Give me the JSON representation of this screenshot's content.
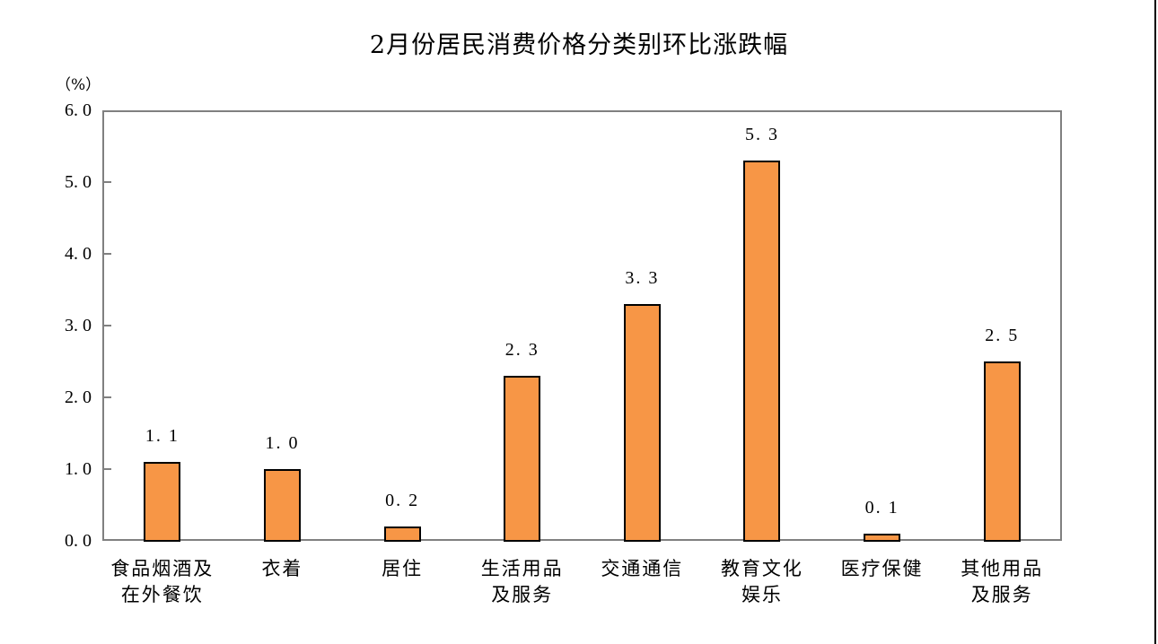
{
  "chart_data": {
    "type": "bar",
    "title": "2月份居民消费价格分类别环比涨跌幅",
    "ylabel": "（%）",
    "xlabel": "",
    "ylim": [
      0,
      6
    ],
    "yticks": [
      "0.0",
      "1.0",
      "2.0",
      "3.0",
      "4.0",
      "5.0",
      "6.0"
    ],
    "grid": false,
    "legend": null,
    "bar_color": "#F79646",
    "categories": [
      [
        "食品烟酒及",
        "在外餐饮"
      ],
      [
        "衣着"
      ],
      [
        "居住"
      ],
      [
        "生活用品",
        "及服务"
      ],
      [
        "交通通信"
      ],
      [
        "教育文化",
        "娱乐"
      ],
      [
        "医疗保健"
      ],
      [
        "其他用品",
        "及服务"
      ]
    ],
    "values": [
      1.1,
      1.0,
      0.2,
      2.3,
      3.3,
      5.3,
      0.1,
      2.5
    ],
    "value_labels": [
      "1.1",
      "1.0",
      "0.2",
      "2.3",
      "3.3",
      "5.3",
      "0.1",
      "2.5"
    ]
  }
}
